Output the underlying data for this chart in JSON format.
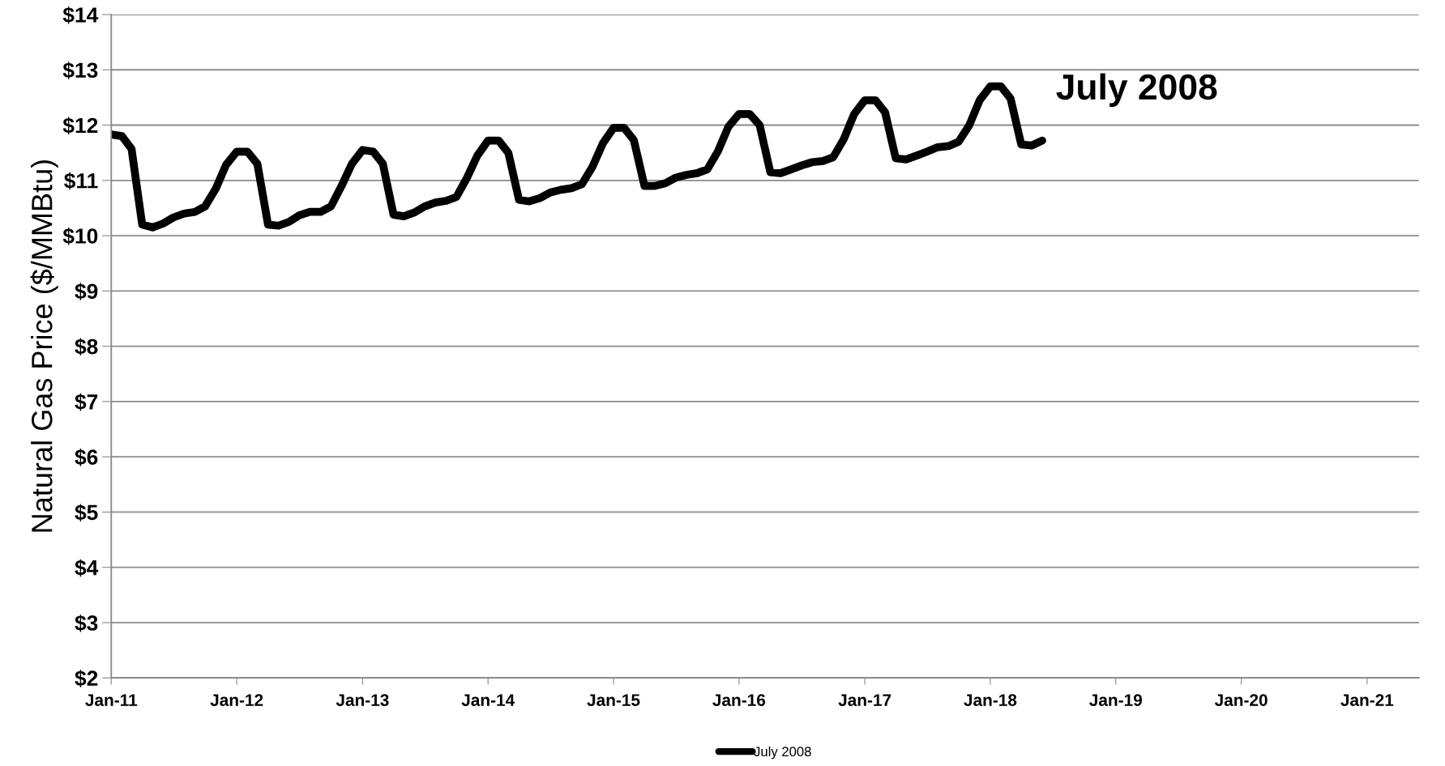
{
  "chart_data": {
    "type": "line",
    "ylabel": "Natural Gas Price ($/MMBtu)",
    "series": [
      {
        "name": "July 2008",
        "color": "#000000",
        "x": [
          "2011-01",
          "2011-02",
          "2011-03",
          "2011-04",
          "2011-05",
          "2011-06",
          "2011-07",
          "2011-08",
          "2011-09",
          "2011-10",
          "2011-11",
          "2011-12",
          "2012-01",
          "2012-02",
          "2012-03",
          "2012-04",
          "2012-05",
          "2012-06",
          "2012-07",
          "2012-08",
          "2012-09",
          "2012-10",
          "2012-11",
          "2012-12",
          "2013-01",
          "2013-02",
          "2013-03",
          "2013-04",
          "2013-05",
          "2013-06",
          "2013-07",
          "2013-08",
          "2013-09",
          "2013-10",
          "2013-11",
          "2013-12",
          "2014-01",
          "2014-02",
          "2014-03",
          "2014-04",
          "2014-05",
          "2014-06",
          "2014-07",
          "2014-08",
          "2014-09",
          "2014-10",
          "2014-11",
          "2014-12",
          "2015-01",
          "2015-02",
          "2015-03",
          "2015-04",
          "2015-05",
          "2015-06",
          "2015-07",
          "2015-08",
          "2015-09",
          "2015-10",
          "2015-11",
          "2015-12",
          "2016-01",
          "2016-02",
          "2016-03",
          "2016-04",
          "2016-05",
          "2016-06",
          "2016-07",
          "2016-08",
          "2016-09",
          "2016-10",
          "2016-11",
          "2016-12",
          "2017-01",
          "2017-02",
          "2017-03",
          "2017-04",
          "2017-05",
          "2017-06",
          "2017-07",
          "2017-08",
          "2017-09",
          "2017-10",
          "2017-11",
          "2017-12",
          "2018-01",
          "2018-02",
          "2018-03",
          "2018-04",
          "2018-05",
          "2018-06"
        ],
        "values": [
          11.83,
          11.8,
          11.57,
          10.2,
          10.15,
          10.22,
          10.33,
          10.4,
          10.43,
          10.53,
          10.85,
          11.28,
          11.52,
          11.52,
          11.3,
          10.2,
          10.18,
          10.25,
          10.37,
          10.43,
          10.43,
          10.53,
          10.9,
          11.3,
          11.55,
          11.52,
          11.3,
          10.38,
          10.35,
          10.42,
          10.53,
          10.6,
          10.63,
          10.7,
          11.05,
          11.45,
          11.72,
          11.72,
          11.5,
          10.65,
          10.62,
          10.68,
          10.78,
          10.83,
          10.86,
          10.93,
          11.25,
          11.67,
          11.95,
          11.95,
          11.73,
          10.9,
          10.9,
          10.95,
          11.05,
          11.1,
          11.13,
          11.2,
          11.53,
          11.97,
          12.2,
          12.2,
          12.0,
          11.15,
          11.13,
          11.2,
          11.27,
          11.33,
          11.35,
          11.42,
          11.75,
          12.2,
          12.45,
          12.45,
          12.23,
          11.4,
          11.38,
          11.45,
          11.52,
          11.6,
          11.62,
          11.7,
          12.0,
          12.45,
          12.7,
          12.7,
          12.48,
          11.65,
          11.63,
          11.72
        ]
      }
    ],
    "xlim": [
      "2011-01",
      "2021-06"
    ],
    "xticks": [
      {
        "value": "2011-01",
        "label": "Jan-11"
      },
      {
        "value": "2012-01",
        "label": "Jan-12"
      },
      {
        "value": "2013-01",
        "label": "Jan-13"
      },
      {
        "value": "2014-01",
        "label": "Jan-14"
      },
      {
        "value": "2015-01",
        "label": "Jan-15"
      },
      {
        "value": "2016-01",
        "label": "Jan-16"
      },
      {
        "value": "2017-01",
        "label": "Jan-17"
      },
      {
        "value": "2018-01",
        "label": "Jan-18"
      },
      {
        "value": "2019-01",
        "label": "Jan-19"
      },
      {
        "value": "2020-01",
        "label": "Jan-20"
      },
      {
        "value": "2021-01",
        "label": "Jan-21"
      }
    ],
    "ylim": [
      2,
      14
    ],
    "yticks": [
      {
        "value": 2,
        "label": "$2"
      },
      {
        "value": 3,
        "label": "$3"
      },
      {
        "value": 4,
        "label": "$4"
      },
      {
        "value": 5,
        "label": "$5"
      },
      {
        "value": 6,
        "label": "$6"
      },
      {
        "value": 7,
        "label": "$7"
      },
      {
        "value": 8,
        "label": "$8"
      },
      {
        "value": 9,
        "label": "$9"
      },
      {
        "value": 10,
        "label": "$10"
      },
      {
        "value": 11,
        "label": "$11"
      },
      {
        "value": 12,
        "label": "$12"
      },
      {
        "value": 13,
        "label": "$13"
      },
      {
        "value": 14,
        "label": "$14"
      }
    ],
    "grid": "y",
    "legend": "bottom",
    "marker": "none",
    "line_style": "solid"
  }
}
